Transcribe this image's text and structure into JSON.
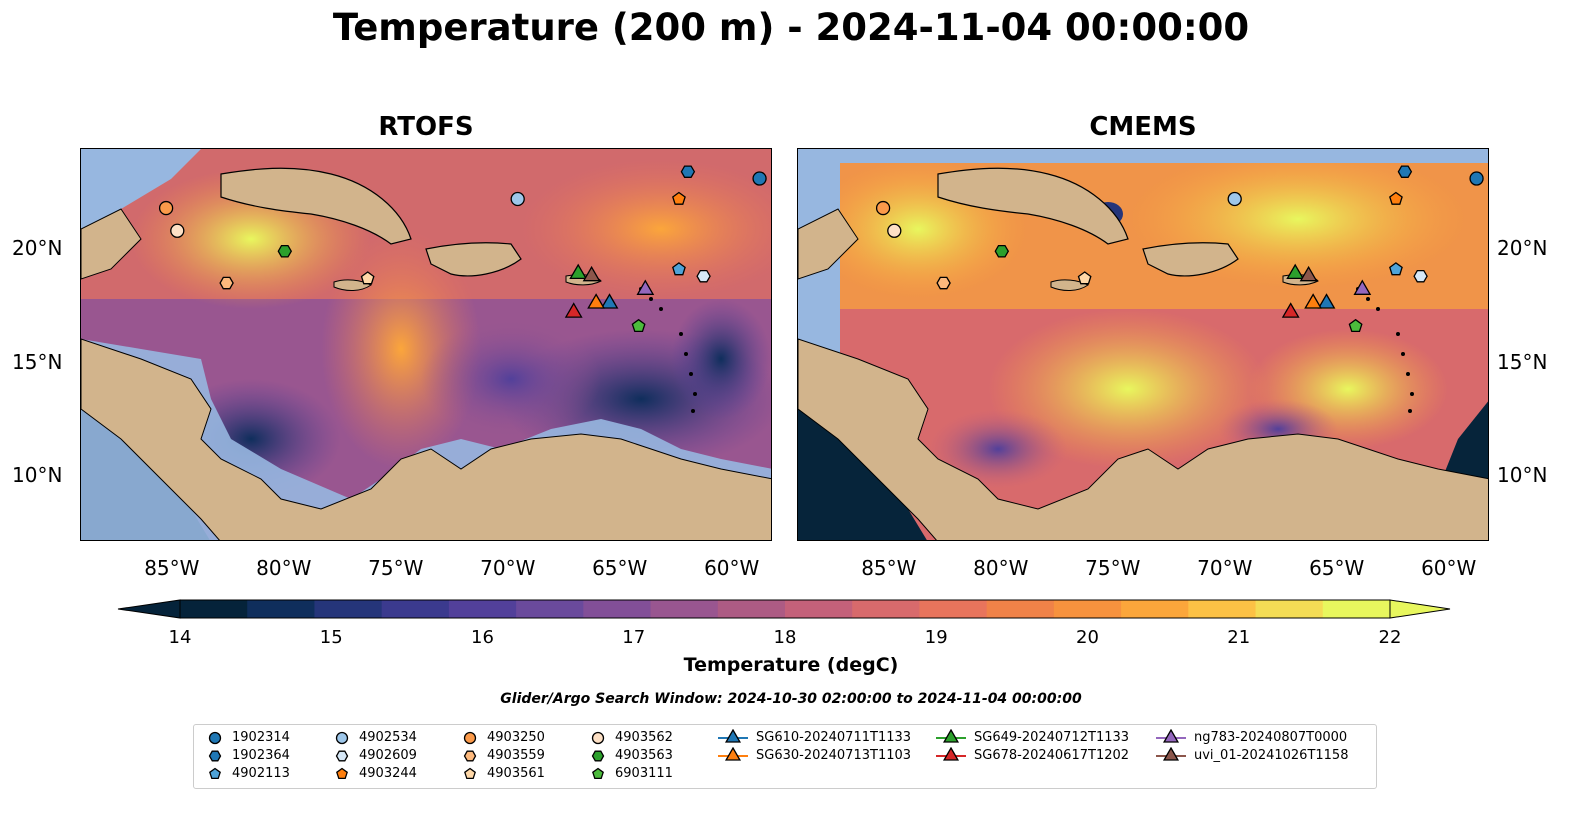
{
  "title": "Temperature (200 m) - 2024-11-04 00:00:00",
  "panels": [
    {
      "title": "RTOFS"
    },
    {
      "title": "CMEMS"
    }
  ],
  "axes": {
    "lon_ticks": [
      "85°W",
      "80°W",
      "75°W",
      "70°W",
      "65°W",
      "60°W"
    ],
    "lat_ticks": [
      "20°N",
      "15°N",
      "10°N"
    ]
  },
  "colorbar": {
    "ticks": [
      "14",
      "15",
      "16",
      "17",
      "18",
      "19",
      "20",
      "21",
      "22"
    ],
    "label": "Temperature (degC)",
    "range": [
      14,
      22
    ],
    "colors": [
      "#05233a",
      "#0f2e5c",
      "#25357a",
      "#3b3a8e",
      "#52409a",
      "#6a4a9c",
      "#824f98",
      "#995690",
      "#ad5b84",
      "#c4617a",
      "#d86a6c",
      "#e8745c",
      "#f08248",
      "#f7923e",
      "#fba63b",
      "#fcc145",
      "#f4dc55",
      "#e8f75e"
    ]
  },
  "search_window": "Glider/Argo Search Window: 2024-10-30 02:00:00 to 2024-11-04 00:00:00",
  "map_colors": {
    "land": "#d2b48c",
    "shelf": "#97b7e0",
    "deep_left": "#06243a"
  },
  "markers": [
    {
      "id": "1902314",
      "shape": "circle",
      "color": "#1f77b4",
      "lon": -58.8,
      "lat": 23.1
    },
    {
      "id": "1902364",
      "shape": "hexagon",
      "color": "#1f77b4",
      "lon": -62.0,
      "lat": 23.4
    },
    {
      "id": "4902113",
      "shape": "pentagon",
      "color": "#4fa3d8",
      "lon": -62.4,
      "lat": 19.1
    },
    {
      "id": "4902534",
      "shape": "circle",
      "color": "#9ec7ea",
      "lon": -69.6,
      "lat": 22.2
    },
    {
      "id": "4902609",
      "shape": "hexagon",
      "color": "#d6e8f7",
      "lon": -61.3,
      "lat": 18.8
    },
    {
      "id": "4903244",
      "shape": "pentagon",
      "color": "#ff7f0e",
      "lon": -62.4,
      "lat": 22.2
    },
    {
      "id": "4903250",
      "shape": "circle",
      "color": "#fb9a4a",
      "lon": -85.3,
      "lat": 21.8
    },
    {
      "id": "4903559",
      "shape": "hexagon",
      "color": "#fdb97d",
      "lon": -82.6,
      "lat": 18.5
    },
    {
      "id": "4903561",
      "shape": "pentagon",
      "color": "#ffd8a8",
      "lon": -76.3,
      "lat": 18.7
    },
    {
      "id": "4903562",
      "shape": "circle",
      "color": "#fde0c5",
      "lon": -84.8,
      "lat": 20.8
    },
    {
      "id": "4903563",
      "shape": "hexagon",
      "color": "#2ca02c",
      "lon": -80.0,
      "lat": 19.9
    },
    {
      "id": "6903111",
      "shape": "pentagon",
      "color": "#4cbb3c",
      "lon": -64.2,
      "lat": 16.6
    }
  ],
  "gliders": [
    {
      "id": "SG610-20240711T1133",
      "color": "#1f77b4",
      "lon": -65.5,
      "lat": 17.6
    },
    {
      "id": "SG630-20240713T1103",
      "color": "#ff7f0e",
      "lon": -66.1,
      "lat": 17.6
    },
    {
      "id": "SG649-20240712T1133",
      "color": "#2ca02c",
      "lon": -66.9,
      "lat": 18.9
    },
    {
      "id": "SG678-20240617T1202",
      "color": "#d62728",
      "lon": -67.1,
      "lat": 17.2
    },
    {
      "id": "ng783-20240807T0000",
      "color": "#9467bd",
      "lon": -63.9,
      "lat": 18.2
    },
    {
      "id": "uvi_01-20241026T1158",
      "color": "#8c564b",
      "lon": -66.3,
      "lat": 18.8
    }
  ]
}
